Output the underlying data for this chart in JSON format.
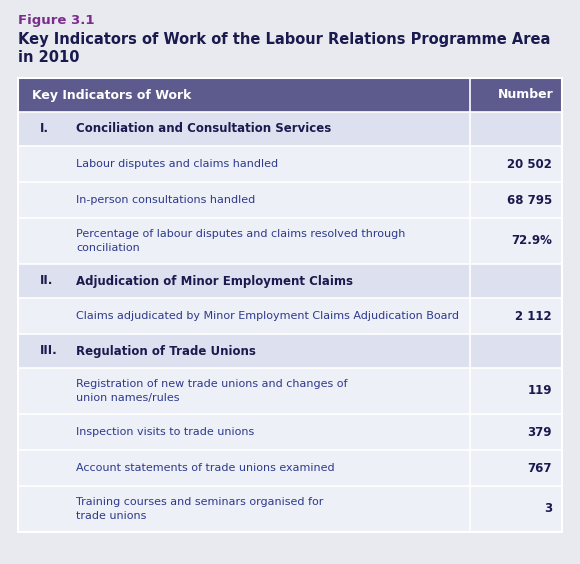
{
  "figure_label": "Figure 3.1",
  "title_line1": "Key Indicators of Work of the Labour Relations Programme Area",
  "title_line2": "in 2010",
  "header_col1": "Key Indicators of Work",
  "header_col2": "Number",
  "bg_color": "#e8eaf0",
  "header_bg": "#5d5b8d",
  "header_fg": "#ffffff",
  "section_bg": "#dde0ee",
  "row_bg": "#eef0f8",
  "divider_color": "#ffffff",
  "figure_label_color": "#7b2d8b",
  "title_color": "#1a1a4e",
  "section_num_color": "#1a1a4e",
  "section_text_color": "#1a1a4e",
  "row_text_color": "#2e3a8c",
  "number_color": "#1a1a4e",
  "rows": [
    {
      "type": "section",
      "num": "I.",
      "label": "Conciliation and Consultation Services",
      "value": "",
      "lines": 1
    },
    {
      "type": "data",
      "num": "",
      "label": "Labour disputes and claims handled",
      "value": "20 502",
      "lines": 1
    },
    {
      "type": "data",
      "num": "",
      "label": "In-person consultations handled",
      "value": "68 795",
      "lines": 1
    },
    {
      "type": "data",
      "num": "",
      "label": "Percentage of labour disputes and claims resolved through\nconciliation",
      "value": "72.9%",
      "lines": 2
    },
    {
      "type": "section",
      "num": "II.",
      "label": "Adjudication of Minor Employment Claims",
      "value": "",
      "lines": 1
    },
    {
      "type": "data",
      "num": "",
      "label": "Claims adjudicated by Minor Employment Claims Adjudication Board",
      "value": "2 112",
      "lines": 1
    },
    {
      "type": "section",
      "num": "III.",
      "label": "Regulation of Trade Unions",
      "value": "",
      "lines": 1
    },
    {
      "type": "data",
      "num": "",
      "label": "Registration of new trade unions and changes of\nunion names/rules",
      "value": "119",
      "lines": 2
    },
    {
      "type": "data",
      "num": "",
      "label": "Inspection visits to trade unions",
      "value": "379",
      "lines": 1
    },
    {
      "type": "data",
      "num": "",
      "label": "Account statements of trade unions examined",
      "value": "767",
      "lines": 1
    },
    {
      "type": "data",
      "num": "",
      "label": "Training courses and seminars organised for\ntrade unions",
      "value": "3",
      "lines": 2
    }
  ]
}
